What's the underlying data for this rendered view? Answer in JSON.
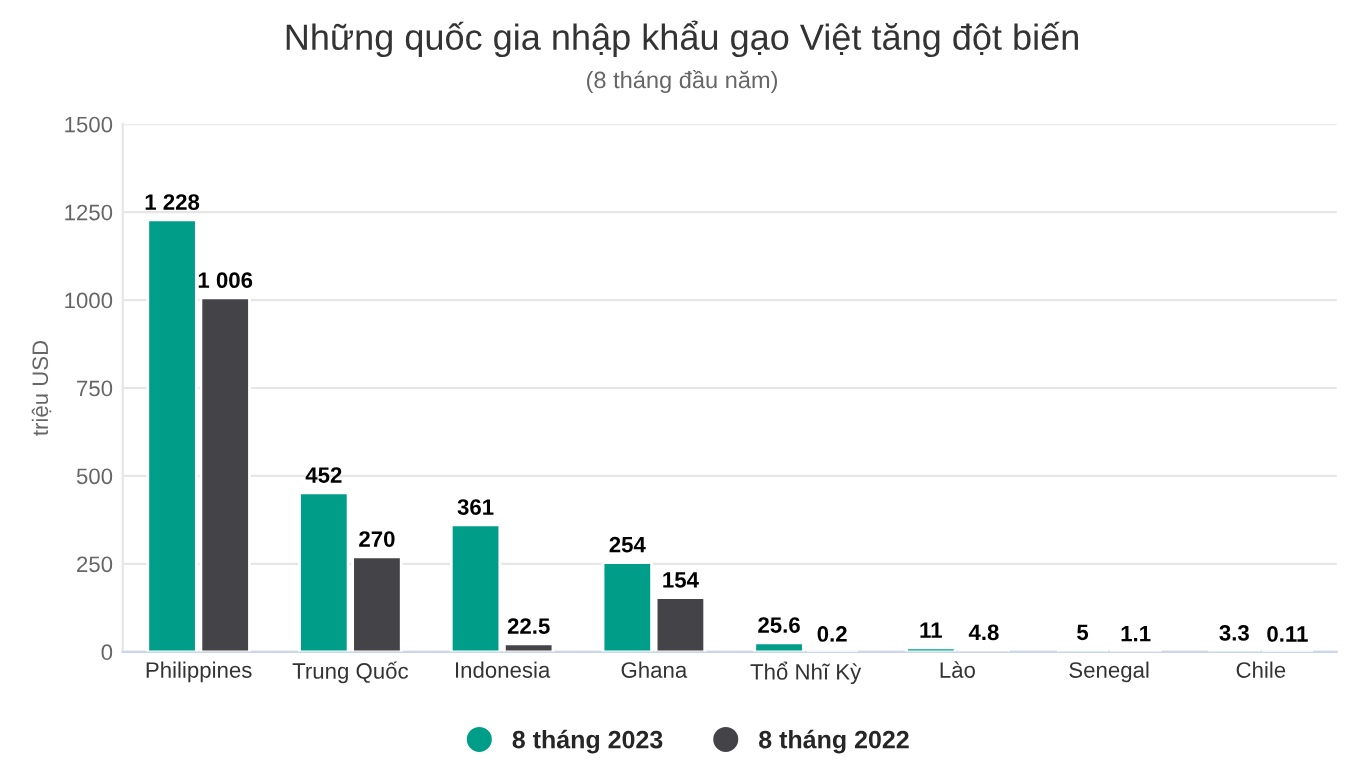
{
  "chart_data": {
    "type": "bar",
    "title": "Những quốc gia nhập khẩu gạo Việt tăng đột biến",
    "subtitle": "(8 tháng đầu năm)",
    "ylabel": "triệu USD",
    "categories": [
      "Philippines",
      "Trung Quốc",
      "Indonesia",
      "Ghana",
      "Thổ Nhĩ Kỳ",
      "Lào",
      "Senegal",
      "Chile"
    ],
    "series": [
      {
        "name": "8 tháng 2023",
        "color": "#009e89",
        "values": [
          1228,
          452,
          361,
          254,
          25.6,
          11,
          5,
          3.3
        ],
        "value_labels": [
          "1 228",
          "452",
          "361",
          "254",
          "25.6",
          "11",
          "5",
          "3.3"
        ]
      },
      {
        "name": "8 tháng 2022",
        "color": "#434348",
        "values": [
          1006,
          270,
          22.5,
          154,
          0.2,
          4.8,
          1.1,
          0.11
        ],
        "value_labels": [
          "1 006",
          "270",
          "22.5",
          "154",
          "0.2",
          "4.8",
          "1.1",
          "0.11"
        ]
      }
    ],
    "ylim": [
      0,
      1500
    ],
    "yticks": [
      0,
      250,
      500,
      750,
      1000,
      1250,
      1500
    ],
    "grid": "y",
    "legend": "bottom"
  }
}
